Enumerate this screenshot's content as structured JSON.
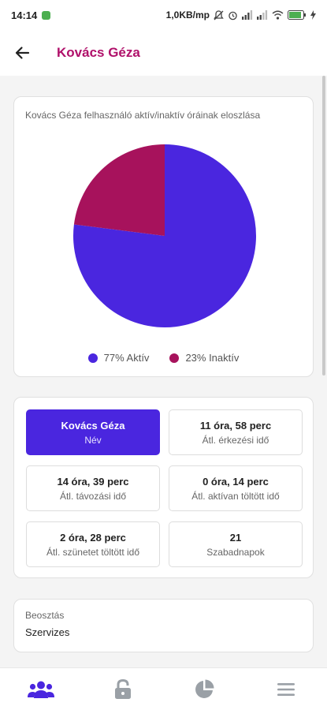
{
  "status_bar": {
    "time": "14:14",
    "network_speed": "1,0KB/mp"
  },
  "app_bar": {
    "title": "Kovács Géza",
    "back_icon": "arrow-left-icon"
  },
  "chart_card": {
    "title": "Kovács Géza felhasználó aktív/inaktív óráinak eloszlása"
  },
  "chart_data": {
    "type": "pie",
    "title": "Kovács Géza felhasználó aktív/inaktív óráinak eloszlása",
    "slices": [
      {
        "label": "77% Aktív",
        "value": 77,
        "color": "#4a26df"
      },
      {
        "label": "23% Inaktív",
        "value": 23,
        "color": "#a7125c"
      }
    ],
    "legend_position": "bottom"
  },
  "stats": [
    {
      "value": "Kovács Géza",
      "label": "Név"
    },
    {
      "value": "11 óra, 58 perc",
      "label": "Átl. érkezési idő"
    },
    {
      "value": "14 óra, 39 perc",
      "label": "Átl. távozási idő"
    },
    {
      "value": "0 óra, 14 perc",
      "label": "Átl. aktívan töltött idő"
    },
    {
      "value": "2 óra, 28 perc",
      "label": "Átl. szünetet töltött idő"
    },
    {
      "value": "21",
      "label": "Szabadnapok"
    }
  ],
  "assignment": {
    "label": "Beosztás",
    "value": "Szervizes"
  },
  "bottom_nav": {
    "items": [
      "users-icon",
      "lock-icon",
      "pie-chart-icon",
      "menu-icon"
    ],
    "active": "users-icon",
    "active_color": "#4a26df",
    "inactive_color": "#9aa0a6"
  },
  "colors": {
    "accent": "#4a26df",
    "title": "#b0106a",
    "inactive_slice": "#a7125c"
  }
}
